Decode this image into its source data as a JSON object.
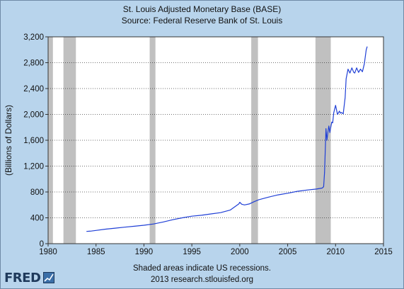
{
  "chart_data": {
    "type": "line",
    "title": "St. Louis Adjusted Monetary Base (BASE)",
    "subtitle": "Source: Federal Reserve Bank of St. Louis",
    "xlabel": "",
    "ylabel": "(Billions of Dollars)",
    "xlim": [
      1980,
      2015
    ],
    "ylim": [
      0,
      3200
    ],
    "x_ticks": [
      "1980",
      "1985",
      "1990",
      "1995",
      "2000",
      "2005",
      "2010",
      "2015"
    ],
    "y_ticks": [
      "0",
      "400",
      "800",
      "1,200",
      "1,600",
      "2,000",
      "2,400",
      "2,800",
      "3,200"
    ],
    "grid": {
      "x": false,
      "y": true
    },
    "line_color": "#1f3fd6",
    "recession_color": "#c0c0c0",
    "recessions": [
      [
        1980.0,
        1980.5
      ],
      [
        1981.6,
        1982.9
      ],
      [
        1990.6,
        1991.2
      ],
      [
        2001.2,
        2001.9
      ],
      [
        2007.9,
        2009.5
      ]
    ],
    "series": [
      {
        "x": [
          1984.0,
          1984.5,
          1985.0,
          1986.0,
          1987.0,
          1988.0,
          1989.0,
          1990.0,
          1991.0,
          1992.0,
          1993.0,
          1994.0,
          1995.0,
          1996.0,
          1997.0,
          1998.0,
          1999.0,
          1999.9,
          2000.0,
          2000.2,
          2000.5,
          2001.0,
          2001.5,
          2002.0,
          2003.0,
          2004.0,
          2005.0,
          2006.0,
          2007.0,
          2008.0,
          2008.6,
          2008.75,
          2008.85,
          2009.0,
          2009.1,
          2009.2,
          2009.3,
          2009.4,
          2009.5,
          2009.6,
          2009.7,
          2009.8,
          2010.0,
          2010.2,
          2010.4,
          2010.5,
          2010.6,
          2010.8,
          2011.0,
          2011.1,
          2011.3,
          2011.5,
          2011.7,
          2011.9,
          2012.0,
          2012.2,
          2012.4,
          2012.6,
          2012.8,
          2013.0,
          2013.2,
          2013.3
        ],
        "values": [
          190,
          195,
          205,
          225,
          240,
          255,
          270,
          285,
          305,
          335,
          370,
          400,
          425,
          440,
          460,
          480,
          520,
          615,
          640,
          610,
          600,
          615,
          650,
          680,
          720,
          755,
          780,
          810,
          830,
          845,
          860,
          880,
          1100,
          1780,
          1600,
          1730,
          1820,
          1720,
          1800,
          1880,
          1870,
          2020,
          2140,
          2000,
          2050,
          2020,
          2030,
          2010,
          2260,
          2550,
          2700,
          2640,
          2720,
          2650,
          2640,
          2720,
          2650,
          2700,
          2660,
          2780,
          3000,
          3050
        ]
      }
    ]
  },
  "notes": {
    "line1": "Shaded areas indicate US recessions.",
    "line2": "2013 research.stlouisfed.org"
  },
  "logo": {
    "text": "FRED"
  }
}
